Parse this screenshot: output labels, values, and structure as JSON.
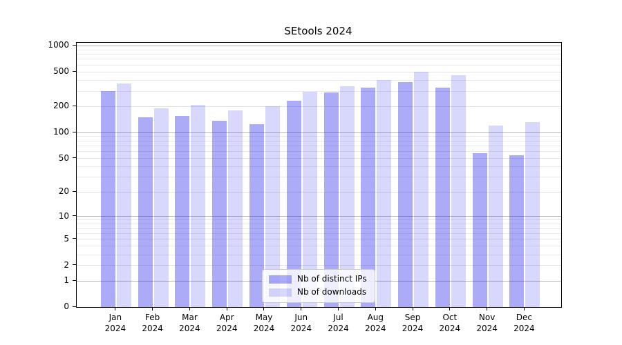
{
  "title": "SEtools 2024",
  "chart_data": {
    "type": "bar",
    "title": "SEtools 2024",
    "categories": [
      "Jan",
      "Feb",
      "Mar",
      "Apr",
      "May",
      "Jun",
      "Jul",
      "Aug",
      "Sep",
      "Oct",
      "Nov",
      "Dec"
    ],
    "x_year_label": "2024",
    "series": [
      {
        "name": "Nb of distinct IPs",
        "color": "rgba(13,13,235,0.35)",
        "values": [
          303,
          150,
          157,
          136,
          126,
          235,
          293,
          330,
          380,
          333,
          58,
          54
        ]
      },
      {
        "name": "Nb of downloads",
        "color": "rgba(13,13,235,0.16)",
        "values": [
          370,
          189,
          208,
          180,
          200,
          295,
          341,
          406,
          506,
          460,
          121,
          131
        ]
      }
    ],
    "yscale": "log1p",
    "ylim": [
      0,
      1065
    ],
    "yticks": [
      1000,
      500,
      200,
      100,
      50,
      20,
      10,
      5,
      2,
      1,
      0
    ],
    "ytick_labels": [
      "1000",
      "500",
      "200",
      "100",
      "50",
      "20",
      "10",
      "5",
      "2",
      "1",
      "0"
    ],
    "yticks_decade": [
      1000,
      100,
      10,
      1
    ],
    "yticks_minor": [
      900,
      800,
      700,
      600,
      400,
      300,
      90,
      80,
      70,
      60,
      40,
      30,
      9,
      8,
      7,
      6,
      4,
      3
    ],
    "legend": {
      "position": "lower center"
    },
    "grid": "on"
  },
  "colors": {
    "bar_distinct_ips": "#aaaaf8",
    "bar_downloads": "#dcdcf8",
    "grid_decade": "#b4b4b4",
    "grid_labeled": "#e2e2e2",
    "grid_minor": "#eaeaea",
    "spine": "#000000",
    "background": "#ffffff"
  }
}
